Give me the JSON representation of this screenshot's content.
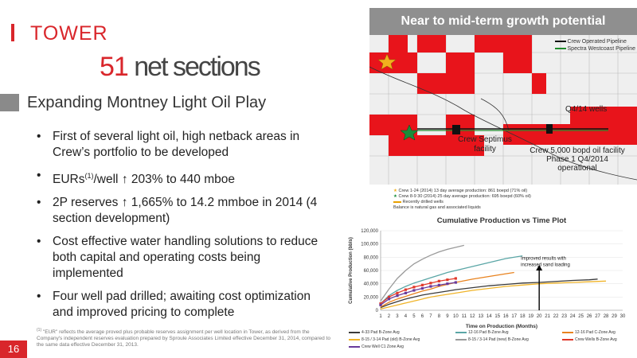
{
  "header": {
    "title": "TOWER",
    "net_number": "51",
    "net_text": " net sections",
    "subtitle": "Expanding Montney Light Oil Play"
  },
  "bullets": [
    {
      "text": "First of several light oil, high netback areas in Crew’s portfolio to be developed"
    },
    {
      "pre": "EURs",
      "sup": "(1)",
      "mid": "/well ",
      "arrow": "↑",
      "post": " 203% to 440 mboe"
    },
    {
      "pre": "2P reserves ",
      "arrow": "↑",
      "post": " 1,665% to 14.2 mmboe in 2014 (4 section development)"
    },
    {
      "text": "Cost effective water handling solutions to reduce both capital and operating costs being implemented"
    },
    {
      "text": "Four well pad drilled; awaiting cost optimization and improved pricing to complete"
    }
  ],
  "footnote": {
    "marker": "(1)",
    "text": "\"EUR\" reflects the average proved plus probable reserves assignment per well location in Tower, as derived from the Company's independent reserves evaluation prepared by Sproule Associates Limited effective December 31, 2014, compared to the same data effective December 31, 2013."
  },
  "page_number": "16",
  "map": {
    "header": "Near to mid-term growth potential",
    "legend": [
      "Crew Operated Pipeline",
      "Spectra Westcoast Pipeline"
    ],
    "labels": {
      "wells": "Q4/14 wells",
      "septimus": "Crew Septimus facility",
      "facility": "Crew 5,000 bopd oil facility Phase 1 Q4/2014 operational"
    },
    "below_legend": [
      "Crew 1-24 (2014) 13 day average production: 861 boepd (71% oil)",
      "Crew 8-9 30 (2014) 25 day average production: 695 boepd (60% oil)",
      "Recently drilled wells",
      "Balance is natural gas and associated liquids"
    ],
    "colors": {
      "land": "#e8141b",
      "gold_star": "#f2b01e",
      "green_star": "#1a8c3a",
      "pipeline_green": "#1f8a2b"
    }
  },
  "chart_data": {
    "type": "line",
    "title": "Cumulative Production vs Time Plot",
    "xlabel": "Time on Production (Months)",
    "ylabel": "Cumulative Production (bbls)",
    "xlim": [
      1,
      30
    ],
    "ylim": [
      0,
      120000
    ],
    "x_ticks": [
      1,
      2,
      3,
      4,
      5,
      6,
      7,
      8,
      9,
      10,
      11,
      12,
      13,
      14,
      15,
      16,
      17,
      18,
      19,
      20,
      21,
      22,
      23,
      24,
      25,
      26,
      27,
      28,
      29,
      30
    ],
    "y_ticks": [
      "0",
      "20,000",
      "40,000",
      "60,000",
      "80,000",
      "100,000",
      "120,000"
    ],
    "annotation": "Improved results with increased sand loading",
    "series": [
      {
        "name": "4-33 Pad B-Zone Avg",
        "color": "#3a3a3a",
        "x": [
          1,
          2,
          3,
          4,
          5,
          6,
          7,
          8,
          9,
          10,
          12,
          14,
          16,
          18,
          20,
          22,
          24,
          26,
          27
        ],
        "y": [
          4000,
          9000,
          13000,
          17000,
          20000,
          23000,
          25000,
          27000,
          29000,
          31000,
          34000,
          37000,
          39000,
          41000,
          42000,
          43500,
          45000,
          46000,
          47000
        ]
      },
      {
        "name": "12-16 Pad B-Zone Avg",
        "color": "#5aa6a6",
        "x": [
          1,
          2,
          3,
          4,
          5,
          6,
          7,
          8,
          9,
          10,
          12,
          14,
          16,
          18
        ],
        "y": [
          10000,
          22000,
          30000,
          36000,
          41000,
          45000,
          49000,
          53000,
          57000,
          60000,
          66000,
          72000,
          78000,
          82000
        ]
      },
      {
        "name": "12-16 Pad C-Zone Avg",
        "color": "#e8821e",
        "x": [
          1,
          2,
          3,
          4,
          5,
          6,
          7,
          8,
          9,
          10,
          12,
          14,
          16,
          17
        ],
        "y": [
          5000,
          12000,
          17000,
          21000,
          25000,
          29000,
          32000,
          36000,
          39000,
          42000,
          47000,
          51000,
          55000,
          57000
        ]
      },
      {
        "name": "8-15 / 3-14 Pad (old) B-Zone Avg",
        "color": "#f0b429",
        "x": [
          1,
          2,
          3,
          4,
          5,
          6,
          7,
          8,
          9,
          10,
          12,
          14,
          16,
          18,
          20,
          22,
          24,
          26,
          28
        ],
        "y": [
          2000,
          5000,
          8000,
          11000,
          14000,
          17000,
          20000,
          22000,
          24000,
          26000,
          30000,
          33000,
          36000,
          38000,
          40000,
          41000,
          42000,
          43000,
          44000
        ]
      },
      {
        "name": "8-15 / 3-14 Pad (new) B-Zone Avg",
        "color": "#9a9a9a",
        "x": [
          1,
          2,
          3,
          4,
          5,
          6,
          7,
          8,
          9,
          10,
          11
        ],
        "y": [
          14000,
          32000,
          48000,
          60000,
          70000,
          77000,
          83000,
          88000,
          92000,
          95000,
          98000
        ]
      },
      {
        "name": "Crew Wells B-Zone Avg",
        "color": "#e0392a",
        "markers": true,
        "x": [
          1,
          2,
          3,
          4,
          5,
          6,
          7,
          8,
          9,
          10
        ],
        "y": [
          10000,
          20000,
          26000,
          31000,
          35000,
          38000,
          41000,
          44000,
          46000,
          48000
        ]
      },
      {
        "name": "Crew Well C1 Zone Avg",
        "color": "#6a3a9a",
        "markers": true,
        "x": [
          1,
          2,
          3,
          4,
          5,
          6,
          7,
          8,
          9,
          10
        ],
        "y": [
          8000,
          17000,
          22000,
          26000,
          30000,
          33000,
          36000,
          38000,
          40000,
          42000
        ]
      }
    ]
  }
}
